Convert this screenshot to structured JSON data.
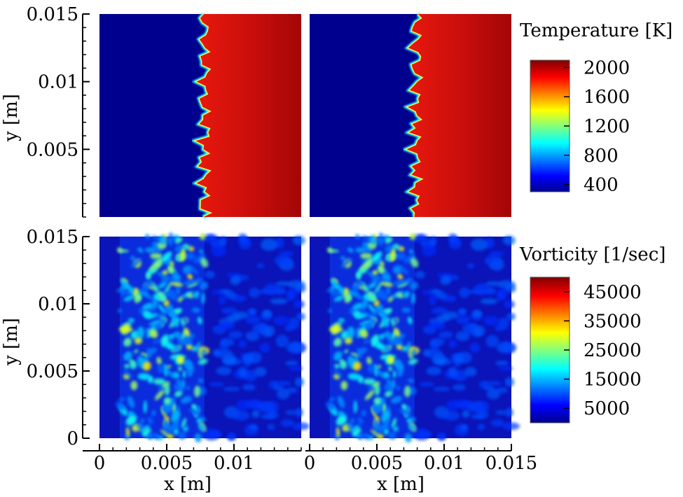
{
  "chart_data": [
    {
      "type": "heatmap",
      "field": "temperature",
      "panel_position": "top-left",
      "xlabel": "",
      "ylabel": "y [m]",
      "xlim": [
        0,
        0.015
      ],
      "ylim": [
        0,
        0.015
      ],
      "y_ticks": [
        0.005,
        0.01,
        0.015
      ],
      "y_tick_labels": [
        "0.005",
        "0.01",
        "0.015"
      ],
      "front_x_mean": 0.0078,
      "cold_value": 400,
      "hot_value": 2000
    },
    {
      "type": "heatmap",
      "field": "temperature",
      "panel_position": "top-right",
      "xlim": [
        0,
        0.015
      ],
      "ylim": [
        0,
        0.015
      ],
      "front_x_mean": 0.0079,
      "cold_value": 400,
      "hot_value": 2000
    },
    {
      "type": "heatmap",
      "field": "vorticity",
      "panel_position": "bottom-left",
      "xlabel": "x [m]",
      "ylabel": "y [m]",
      "xlim": [
        0,
        0.015
      ],
      "ylim": [
        0,
        0.015
      ],
      "x_ticks": [
        0,
        0.005,
        0.01
      ],
      "x_tick_labels": [
        "0",
        "0.005",
        "0.01"
      ],
      "y_ticks": [
        0,
        0.005,
        0.01,
        0.015
      ],
      "y_tick_labels": [
        "0",
        "0.005",
        "0.01",
        "0.015"
      ],
      "turbulent_zone_x": [
        0.0015,
        0.0078
      ],
      "peak_value_approx": 35000
    },
    {
      "type": "heatmap",
      "field": "vorticity",
      "panel_position": "bottom-right",
      "xlabel": "x [m]",
      "xlim": [
        0,
        0.015
      ],
      "ylim": [
        0,
        0.015
      ],
      "x_ticks": [
        0,
        0.005,
        0.01,
        0.015
      ],
      "x_tick_labels": [
        "0",
        "0.005",
        "0.01",
        "0.015"
      ],
      "turbulent_zone_x": [
        0.0015,
        0.0078
      ],
      "peak_value_approx": 35000
    }
  ],
  "colorbars": {
    "temperature": {
      "title": "Temperature [K]",
      "range": [
        300,
        2100
      ],
      "tick_values": [
        2000,
        1600,
        1200,
        800,
        400
      ],
      "tick_labels": [
        "2000",
        "1600",
        "1200",
        "800",
        "400"
      ],
      "colormap": "jet"
    },
    "vorticity": {
      "title": "Vorticity [1/sec]",
      "range": [
        0,
        50000
      ],
      "tick_values": [
        45000,
        35000,
        25000,
        15000,
        5000
      ],
      "tick_labels": [
        "45000",
        "35000",
        "25000",
        "15000",
        "5000"
      ],
      "colormap": "jet"
    }
  },
  "colors": {
    "jet_stops": [
      "#00008f",
      "#0000ff",
      "#00ffff",
      "#ffff00",
      "#ff0000",
      "#800000"
    ],
    "axis": "#000000",
    "background": "#ffffff"
  }
}
